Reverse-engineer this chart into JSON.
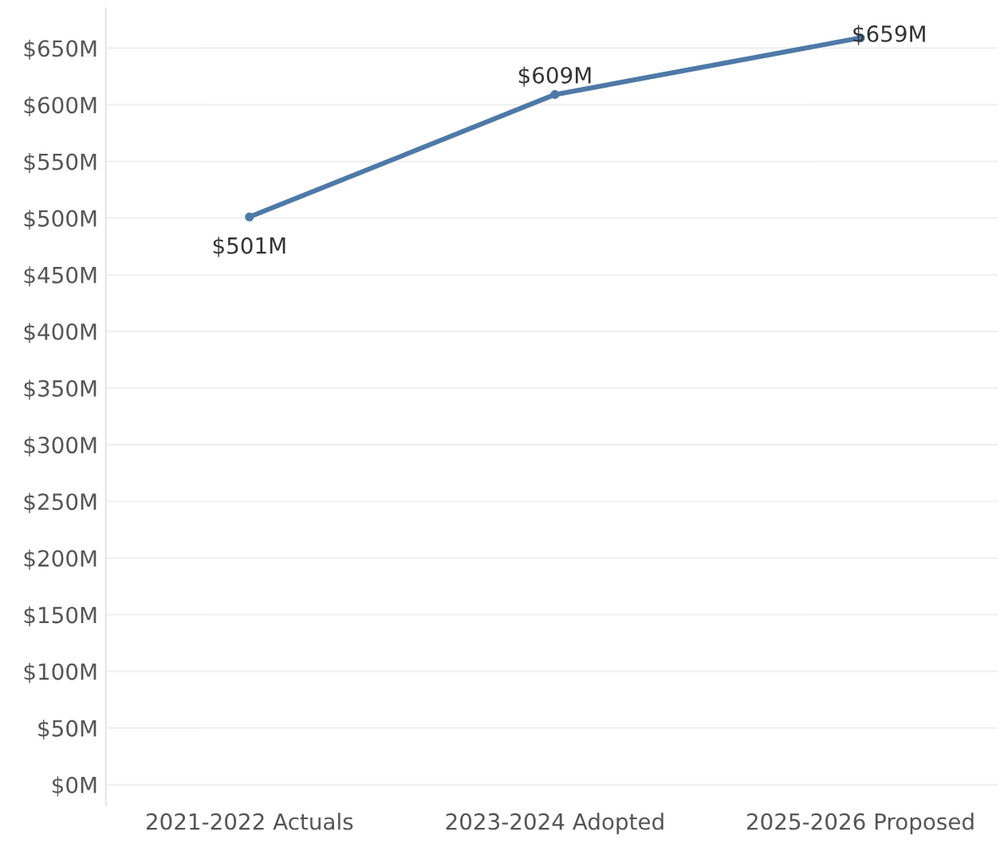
{
  "chart_data": {
    "type": "line",
    "categories": [
      "2021-2022 Actuals",
      "2023-2024 Adopted",
      "2025-2026 Proposed"
    ],
    "series": [
      {
        "color": "#4e79a7",
        "values": [
          501,
          609,
          659
        ]
      }
    ],
    "value_labels": [
      "$501M",
      "$609M",
      "$659M"
    ],
    "ylim": [
      -18,
      685
    ],
    "yticks": [
      {
        "value": 0,
        "label": "$0M"
      },
      {
        "value": 50,
        "label": "$50M"
      },
      {
        "value": 100,
        "label": "$100M"
      },
      {
        "value": 150,
        "label": "$150M"
      },
      {
        "value": 200,
        "label": "$200M"
      },
      {
        "value": 250,
        "label": "$250M"
      },
      {
        "value": 300,
        "label": "$300M"
      },
      {
        "value": 350,
        "label": "$350M"
      },
      {
        "value": 400,
        "label": "$400M"
      },
      {
        "value": 450,
        "label": "$450M"
      },
      {
        "value": 500,
        "label": "$500M"
      },
      {
        "value": 550,
        "label": "$550M"
      },
      {
        "value": 600,
        "label": "$600M"
      },
      {
        "value": 650,
        "label": "$650M"
      }
    ],
    "grid": "y",
    "marker": "circle",
    "line_style": "solid",
    "legend": false
  }
}
